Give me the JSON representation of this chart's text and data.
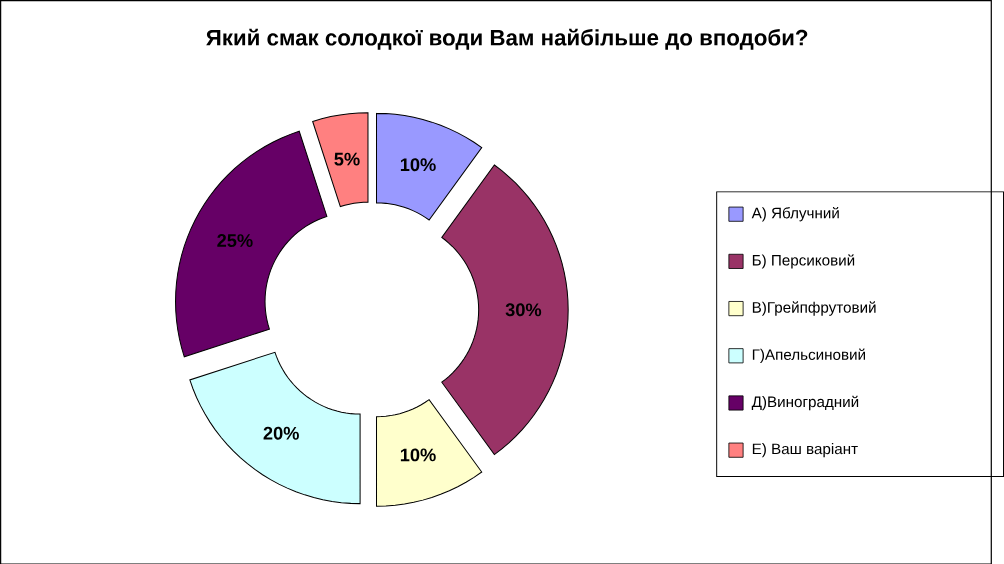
{
  "chart_data": {
    "type": "donut",
    "title": "Який смак солодкої води Вам найбільше до вподоби?",
    "categories": [
      "А) Яблучний",
      "Б) Персиковий",
      "В)Грейпфрутовий",
      "Г)Апельсиновий",
      "Д)Виноградний",
      "Е) Ваш варіант"
    ],
    "values": [
      10,
      30,
      10,
      20,
      25,
      5
    ],
    "value_labels": [
      "10%",
      "30%",
      "10%",
      "20%",
      "25%",
      "5%"
    ],
    "colors": [
      "#9999ff",
      "#993366",
      "#ffffcc",
      "#ccffff",
      "#660066",
      "#ff8080"
    ],
    "legend": "right"
  }
}
